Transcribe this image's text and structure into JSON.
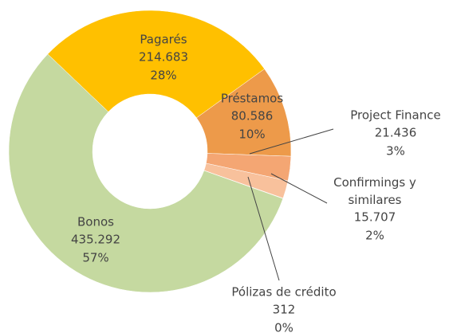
{
  "chart_data": {
    "type": "donut",
    "categories": [
      "Pagarés",
      "Préstamos",
      "Project Finance",
      "Confirmings y similares",
      "Pólizas de crédito",
      "Bonos"
    ],
    "values": [
      214683,
      80586,
      21436,
      15707,
      312,
      435292
    ],
    "value_labels": [
      "214.683",
      "80.586",
      "21.436",
      "15.707",
      "312",
      "435.292"
    ],
    "percent_labels": [
      "28%",
      "10%",
      "3%",
      "2%",
      "0%",
      "57%"
    ],
    "colors": [
      "#ffc000",
      "#ed9a4a",
      "#f4a673",
      "#f8c19c",
      "#fad6bd",
      "#c5d9a0"
    ]
  }
}
